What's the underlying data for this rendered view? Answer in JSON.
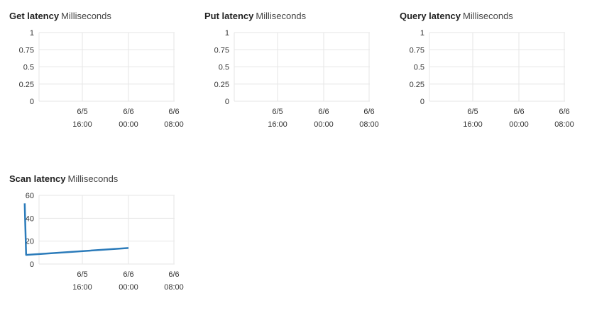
{
  "panels": [
    {
      "name": "Get latency",
      "unit": "Milliseconds"
    },
    {
      "name": "Put latency",
      "unit": "Milliseconds"
    },
    {
      "name": "Query latency",
      "unit": "Milliseconds"
    },
    {
      "name": "Scan latency",
      "unit": "Milliseconds"
    }
  ],
  "colors": {
    "series": "#2b7bba",
    "grid": "#e6e6e6",
    "text": "#333333"
  },
  "chart_data": [
    {
      "type": "line",
      "title": "Get latency",
      "subtitle": "Milliseconds",
      "x_ticks": [
        [
          "6/5",
          "16:00"
        ],
        [
          "6/6",
          "00:00"
        ],
        [
          "6/6",
          "08:00"
        ]
      ],
      "y_ticks": [
        "1",
        "0.75",
        "0.5",
        "0.25",
        "0"
      ],
      "ylim": [
        0,
        1
      ],
      "grid": true,
      "series": [
        {
          "values": []
        }
      ]
    },
    {
      "type": "line",
      "title": "Put latency",
      "subtitle": "Milliseconds",
      "x_ticks": [
        [
          "6/5",
          "16:00"
        ],
        [
          "6/6",
          "00:00"
        ],
        [
          "6/6",
          "08:00"
        ]
      ],
      "y_ticks": [
        "1",
        "0.75",
        "0.5",
        "0.25",
        "0"
      ],
      "ylim": [
        0,
        1
      ],
      "grid": true,
      "series": [
        {
          "values": []
        }
      ]
    },
    {
      "type": "line",
      "title": "Query latency",
      "subtitle": "Milliseconds",
      "x_ticks": [
        [
          "6/5",
          "16:00"
        ],
        [
          "6/6",
          "00:00"
        ],
        [
          "6/6",
          "08:00"
        ]
      ],
      "y_ticks": [
        "1",
        "0.75",
        "0.5",
        "0.25",
        "0"
      ],
      "ylim": [
        0,
        1
      ],
      "grid": true,
      "series": [
        {
          "values": []
        }
      ]
    },
    {
      "type": "line",
      "title": "Scan latency",
      "subtitle": "Milliseconds",
      "x_ticks": [
        [
          "6/5",
          "16:00"
        ],
        [
          "6/6",
          "00:00"
        ],
        [
          "6/6",
          "08:00"
        ]
      ],
      "y_ticks": [
        "60",
        "40",
        "20",
        "0"
      ],
      "ylim": [
        0,
        60
      ],
      "grid": true,
      "series": [
        {
          "points": [
            {
              "x": "6/5 06:00",
              "y": 53
            },
            {
              "x": "6/5 06:15",
              "y": 8
            },
            {
              "x": "6/6 00:00",
              "y": 14
            }
          ]
        }
      ]
    }
  ]
}
